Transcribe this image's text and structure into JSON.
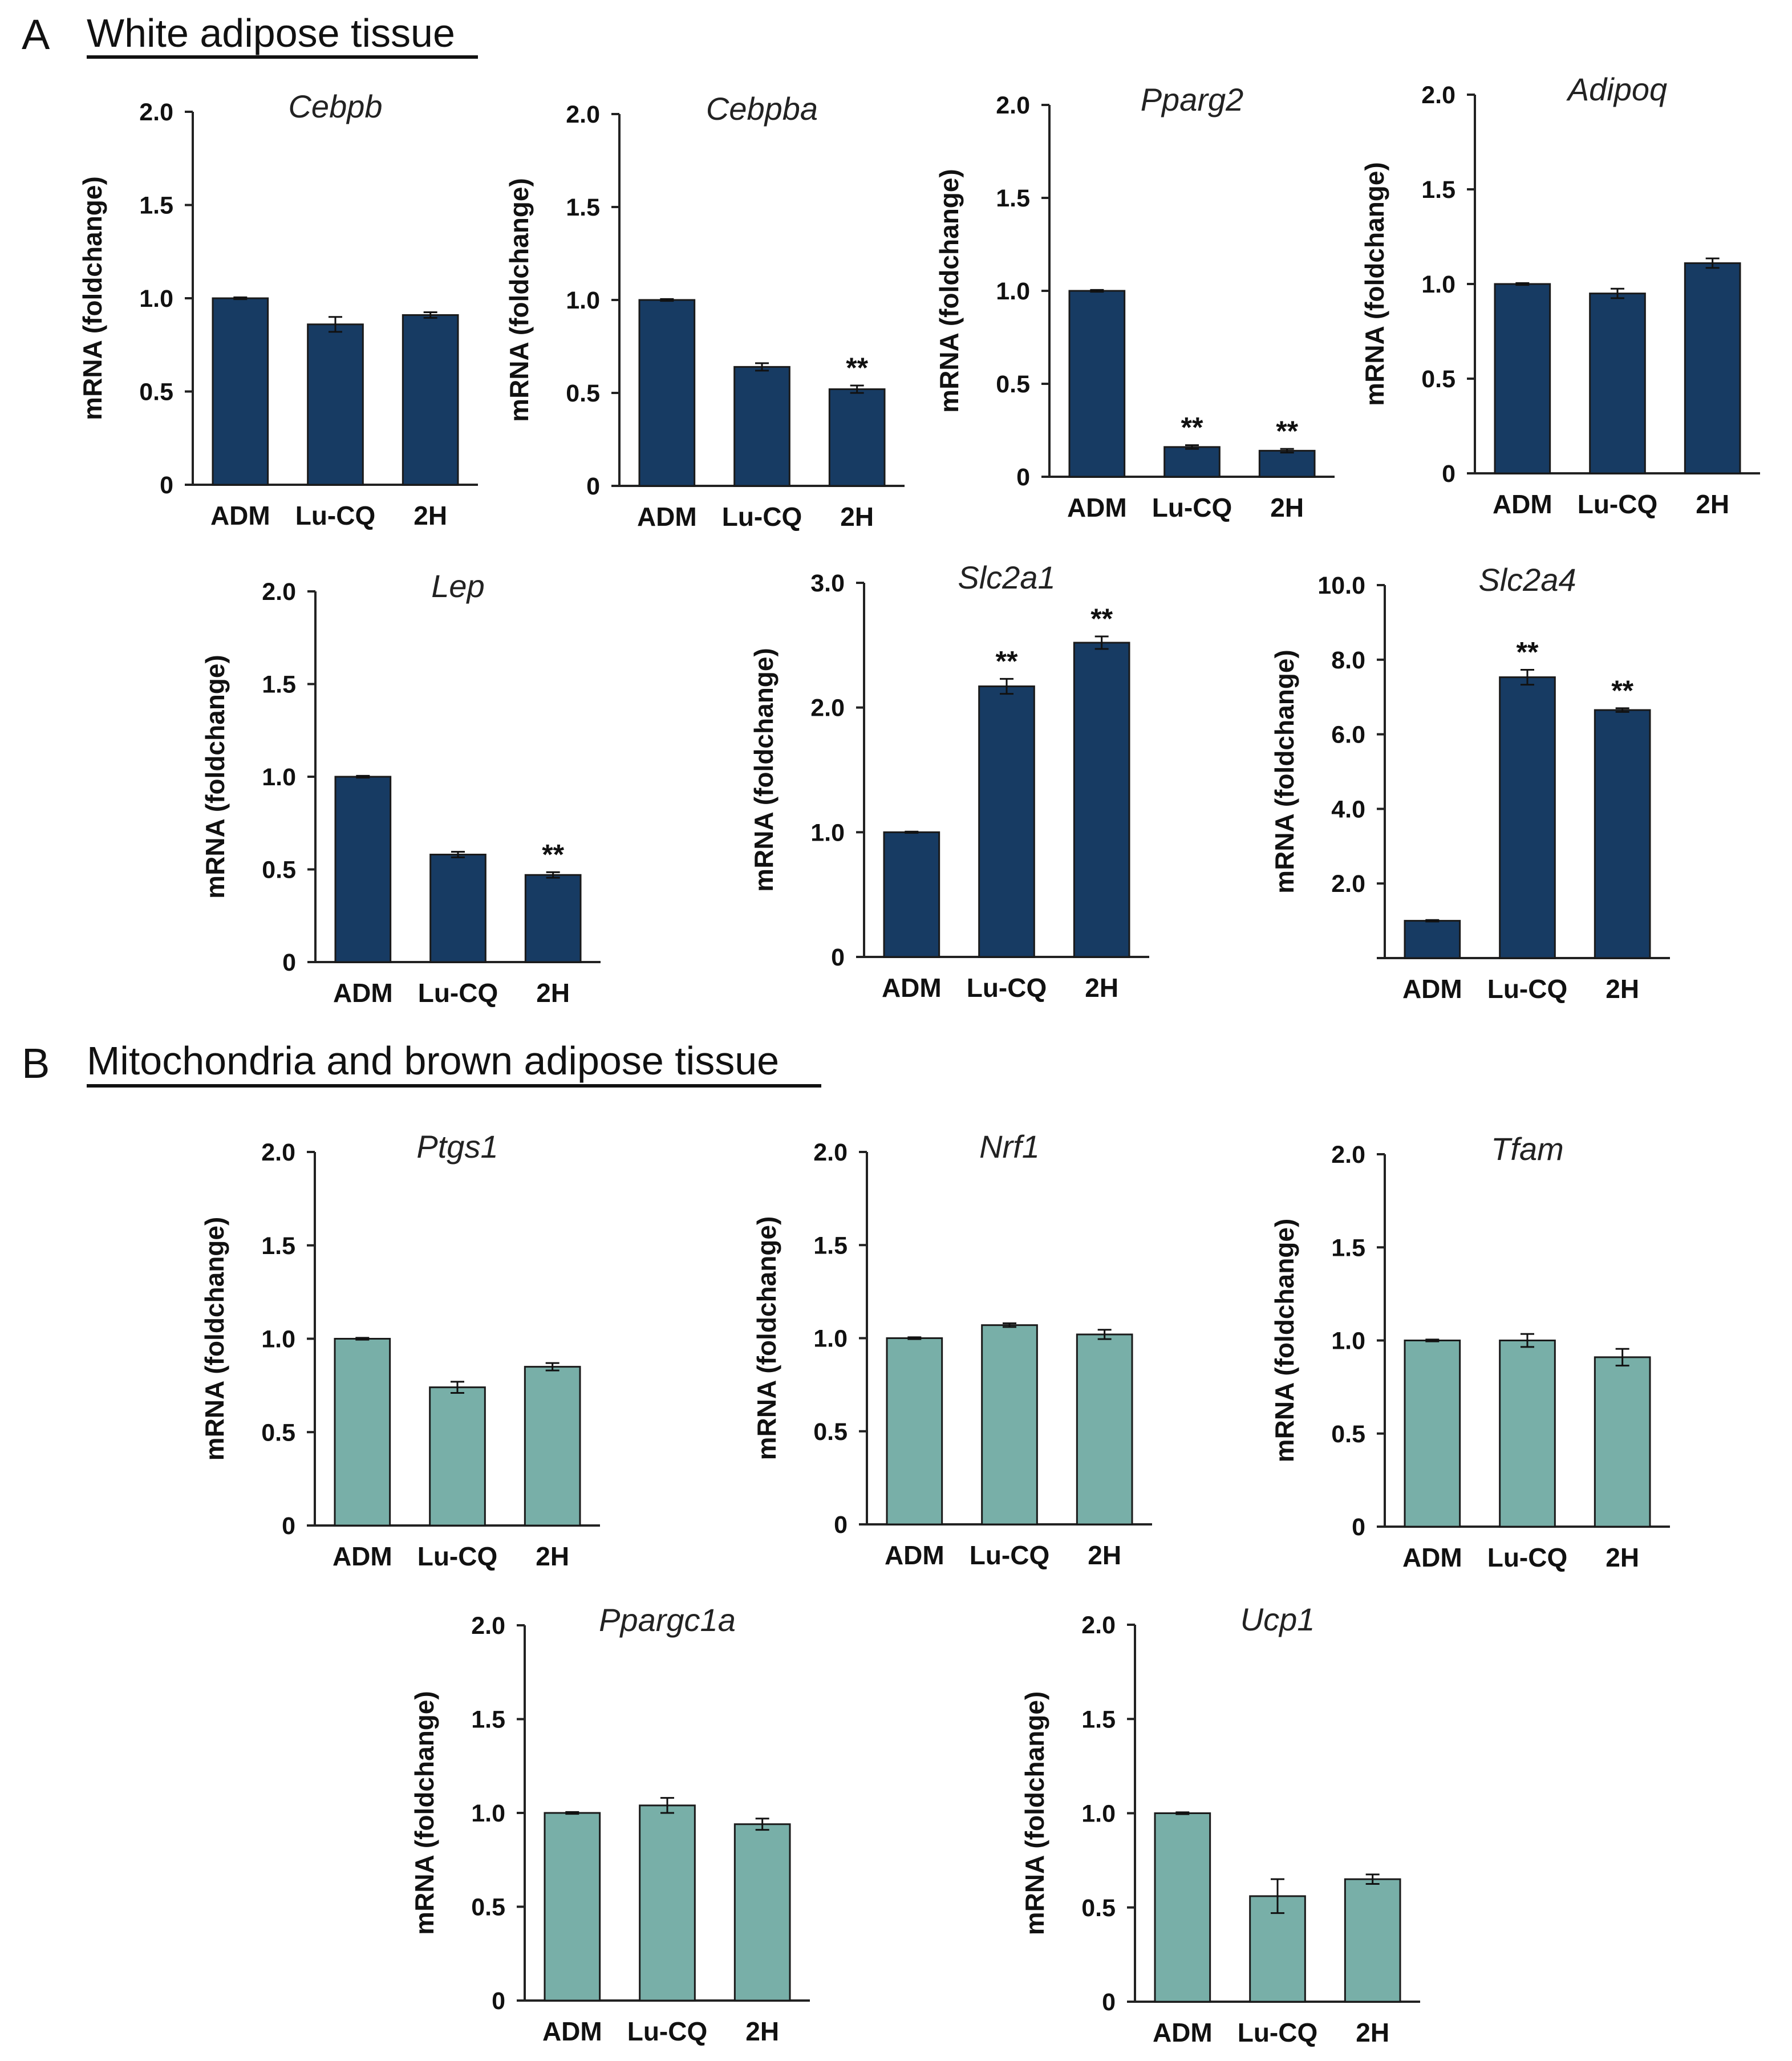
{
  "panels": [
    {
      "letter": "A",
      "title": "White adipose tissue"
    },
    {
      "letter": "B",
      "title": "Mitochondria and brown adipose tissue"
    }
  ],
  "colors": {
    "panel_a_bar": "#173b63",
    "panel_b_bar": "#78afa8",
    "axis": "#222222",
    "errorbar": "#111111"
  },
  "chart_data": [
    {
      "type": "bar",
      "panel": "A",
      "title": "Cebpb",
      "ylabel": "mRNA (foldchange)",
      "categories": [
        "ADM",
        "Lu-CQ",
        "2H"
      ],
      "values": [
        1.0,
        0.86,
        0.91
      ],
      "errors": [
        0.005,
        0.04,
        0.015
      ],
      "significance": [
        "",
        "",
        ""
      ],
      "ylim": [
        0,
        2.0
      ],
      "yticks": [
        0,
        0.5,
        1.0,
        1.5,
        2.0
      ],
      "ytick_labels": [
        "0",
        "0.5",
        "1.0",
        "1.5",
        "2.0"
      ]
    },
    {
      "type": "bar",
      "panel": "A",
      "title": "Cebpba",
      "ylabel": "mRNA (foldchange)",
      "categories": [
        "ADM",
        "Lu-CQ",
        "2H"
      ],
      "values": [
        1.0,
        0.64,
        0.52
      ],
      "errors": [
        0.005,
        0.02,
        0.02
      ],
      "significance": [
        "",
        "",
        "**"
      ],
      "ylim": [
        0,
        2.0
      ],
      "yticks": [
        0,
        0.5,
        1.0,
        1.5,
        2.0
      ],
      "ytick_labels": [
        "0",
        "0.5",
        "1.0",
        "1.5",
        "2.0"
      ]
    },
    {
      "type": "bar",
      "panel": "A",
      "title": "Pparg2",
      "ylabel": "mRNA (foldchange)",
      "categories": [
        "ADM",
        "Lu-CQ",
        "2H"
      ],
      "values": [
        1.0,
        0.16,
        0.14
      ],
      "errors": [
        0.005,
        0.01,
        0.01
      ],
      "significance": [
        "",
        "**",
        "**"
      ],
      "ylim": [
        0,
        2.0
      ],
      "yticks": [
        0,
        0.5,
        1.0,
        1.5,
        2.0
      ],
      "ytick_labels": [
        "0",
        "0.5",
        "1.0",
        "1.5",
        "2.0"
      ]
    },
    {
      "type": "bar",
      "panel": "A",
      "title": "Adipoq",
      "ylabel": "mRNA (foldchange)",
      "categories": [
        "ADM",
        "Lu-CQ",
        "2H"
      ],
      "values": [
        1.0,
        0.95,
        1.11
      ],
      "errors": [
        0.005,
        0.025,
        0.025
      ],
      "significance": [
        "",
        "",
        ""
      ],
      "ylim": [
        0,
        2.0
      ],
      "yticks": [
        0,
        0.5,
        1.0,
        1.5,
        2.0
      ],
      "ytick_labels": [
        "0",
        "0.5",
        "1.0",
        "1.5",
        "2.0"
      ]
    },
    {
      "type": "bar",
      "panel": "A",
      "title": "Lep",
      "ylabel": "mRNA (foldchange)",
      "categories": [
        "ADM",
        "Lu-CQ",
        "2H"
      ],
      "values": [
        1.0,
        0.58,
        0.47
      ],
      "errors": [
        0.005,
        0.015,
        0.015
      ],
      "significance": [
        "",
        "",
        "**"
      ],
      "ylim": [
        0,
        2.0
      ],
      "yticks": [
        0,
        0.5,
        1.0,
        1.5,
        2.0
      ],
      "ytick_labels": [
        "0",
        "0.5",
        "1.0",
        "1.5",
        "2.0"
      ]
    },
    {
      "type": "bar",
      "panel": "A",
      "title": "Slc2a1",
      "ylabel": "mRNA (foldchange)",
      "categories": [
        "ADM",
        "Lu-CQ",
        "2H"
      ],
      "values": [
        1.0,
        2.17,
        2.52
      ],
      "errors": [
        0.005,
        0.06,
        0.05
      ],
      "significance": [
        "",
        "**",
        "**"
      ],
      "ylim": [
        0,
        3.0
      ],
      "yticks": [
        0,
        1.0,
        2.0,
        3.0
      ],
      "ytick_labels": [
        "0",
        "1.0",
        "2.0",
        "3.0"
      ]
    },
    {
      "type": "bar",
      "panel": "A",
      "title": "Slc2a4",
      "ylabel": "mRNA (foldchange)",
      "categories": [
        "ADM",
        "Lu-CQ",
        "2H"
      ],
      "values": [
        1.0,
        7.53,
        6.65
      ],
      "errors": [
        0.02,
        0.2,
        0.05
      ],
      "significance": [
        "",
        "**",
        "**"
      ],
      "ylim": [
        0,
        10.0
      ],
      "yticks": [
        2.0,
        4.0,
        6.0,
        8.0,
        10.0
      ],
      "ytick_labels": [
        "2.0",
        "4.0",
        "6.0",
        "8.0",
        "10.0"
      ]
    },
    {
      "type": "bar",
      "panel": "B",
      "title": "Ptgs1",
      "ylabel": "mRNA (foldchange)",
      "categories": [
        "ADM",
        "Lu-CQ",
        "2H"
      ],
      "values": [
        1.0,
        0.74,
        0.85
      ],
      "errors": [
        0.005,
        0.03,
        0.02
      ],
      "significance": [
        "",
        "",
        ""
      ],
      "ylim": [
        0,
        2.0
      ],
      "yticks": [
        0,
        0.5,
        1.0,
        1.5,
        2.0
      ],
      "ytick_labels": [
        "0",
        "0.5",
        "1.0",
        "1.5",
        "2.0"
      ]
    },
    {
      "type": "bar",
      "panel": "B",
      "title": "Nrf1",
      "ylabel": "mRNA (foldchange)",
      "categories": [
        "ADM",
        "Lu-CQ",
        "2H"
      ],
      "values": [
        1.0,
        1.07,
        1.02
      ],
      "errors": [
        0.005,
        0.01,
        0.025
      ],
      "significance": [
        "",
        "",
        ""
      ],
      "ylim": [
        0,
        2.0
      ],
      "yticks": [
        0,
        0.5,
        1.0,
        1.5,
        2.0
      ],
      "ytick_labels": [
        "0",
        "0.5",
        "1.0",
        "1.5",
        "2.0"
      ]
    },
    {
      "type": "bar",
      "panel": "B",
      "title": "Tfam",
      "ylabel": "mRNA (foldchange)",
      "categories": [
        "ADM",
        "Lu-CQ",
        "2H"
      ],
      "values": [
        1.0,
        1.0,
        0.91
      ],
      "errors": [
        0.005,
        0.035,
        0.045
      ],
      "significance": [
        "",
        "",
        ""
      ],
      "ylim": [
        0,
        2.0
      ],
      "yticks": [
        0,
        0.5,
        1.0,
        1.5,
        2.0
      ],
      "ytick_labels": [
        "0",
        "0.5",
        "1.0",
        "1.5",
        "2.0"
      ]
    },
    {
      "type": "bar",
      "panel": "B",
      "title": "Ppargc1a",
      "ylabel": "mRNA (foldchange)",
      "categories": [
        "ADM",
        "Lu-CQ",
        "2H"
      ],
      "values": [
        1.0,
        1.04,
        0.94
      ],
      "errors": [
        0.005,
        0.04,
        0.03
      ],
      "significance": [
        "",
        "",
        ""
      ],
      "ylim": [
        0,
        2.0
      ],
      "yticks": [
        0,
        0.5,
        1.0,
        1.5,
        2.0
      ],
      "ytick_labels": [
        "0",
        "0.5",
        "1.0",
        "1.5",
        "2.0"
      ]
    },
    {
      "type": "bar",
      "panel": "B",
      "title": "Ucp1",
      "ylabel": "mRNA (foldchange)",
      "categories": [
        "ADM",
        "Lu-CQ",
        "2H"
      ],
      "values": [
        1.0,
        0.56,
        0.65
      ],
      "errors": [
        0.005,
        0.09,
        0.025
      ],
      "significance": [
        "",
        "",
        ""
      ],
      "ylim": [
        0,
        2.0
      ],
      "yticks": [
        0,
        0.5,
        1.0,
        1.5,
        2.0
      ],
      "ytick_labels": [
        "0",
        "0.5",
        "1.0",
        "1.5",
        "2.0"
      ]
    }
  ]
}
